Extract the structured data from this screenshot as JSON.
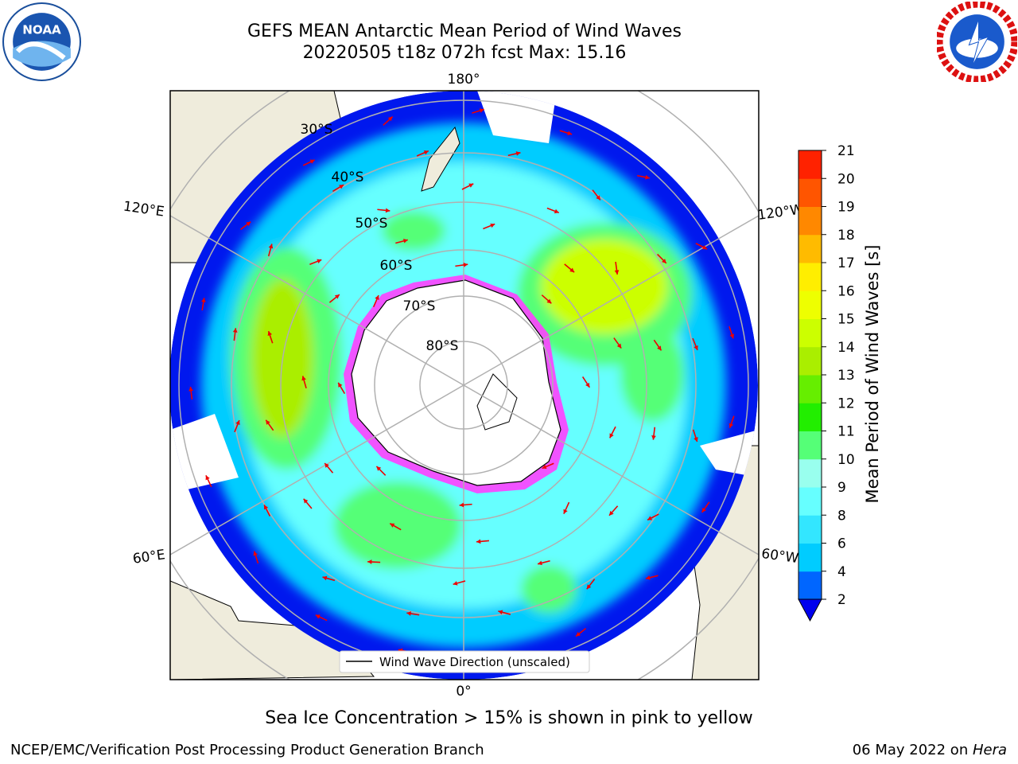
{
  "header": {
    "title_line1": "GEFS MEAN Antarctic Mean Period of Wind Waves",
    "title_line2": "20220505 t18z 072h fcst   Max: 15.16"
  },
  "logos": {
    "left": {
      "icon": "noaa-logo",
      "text": "NOAA"
    },
    "right": {
      "icon": "national-weather-service-logo"
    }
  },
  "map": {
    "projection": "south-polar-stereographic",
    "longitude_labels": {
      "top": "180°",
      "bottom": "0°",
      "upper_left": "120°E",
      "upper_right": "120°W",
      "lower_left": "60°E",
      "lower_right": "60°W"
    },
    "latitude_labels": [
      "30°S",
      "40°S",
      "50°S",
      "60°S",
      "70°S",
      "80°S"
    ],
    "legend_label": "Wind Wave Direction (unscaled)",
    "colors": {
      "land": "#efecdc",
      "coast": "#000000",
      "grid": "#b0b0b0",
      "arrow": "#ee0000",
      "sea_ice": "#ff40ff"
    }
  },
  "colorbar": {
    "label": "Mean Period of Wind Waves [s]",
    "ticks": [
      "2",
      "4",
      "6",
      "8",
      "9",
      "10",
      "11",
      "12",
      "13",
      "14",
      "15",
      "16",
      "17",
      "18",
      "19",
      "20",
      "21"
    ],
    "colors": [
      "#0066ff",
      "#00ccff",
      "#33e6ff",
      "#66ffff",
      "#99ffee",
      "#55ff77",
      "#22ee00",
      "#66ee00",
      "#aaee00",
      "#ccff00",
      "#eeff00",
      "#ffee00",
      "#ffbb00",
      "#ff8800",
      "#ff5500",
      "#ff2200"
    ],
    "under_color": "#0000ee"
  },
  "caption": "Sea Ice Concentration > 15% is shown in pink to yellow",
  "footer": {
    "left": "NCEP/EMC/Verification Post Processing Product Generation Branch",
    "date": "06 May 2022 on ",
    "host": "Hera"
  }
}
